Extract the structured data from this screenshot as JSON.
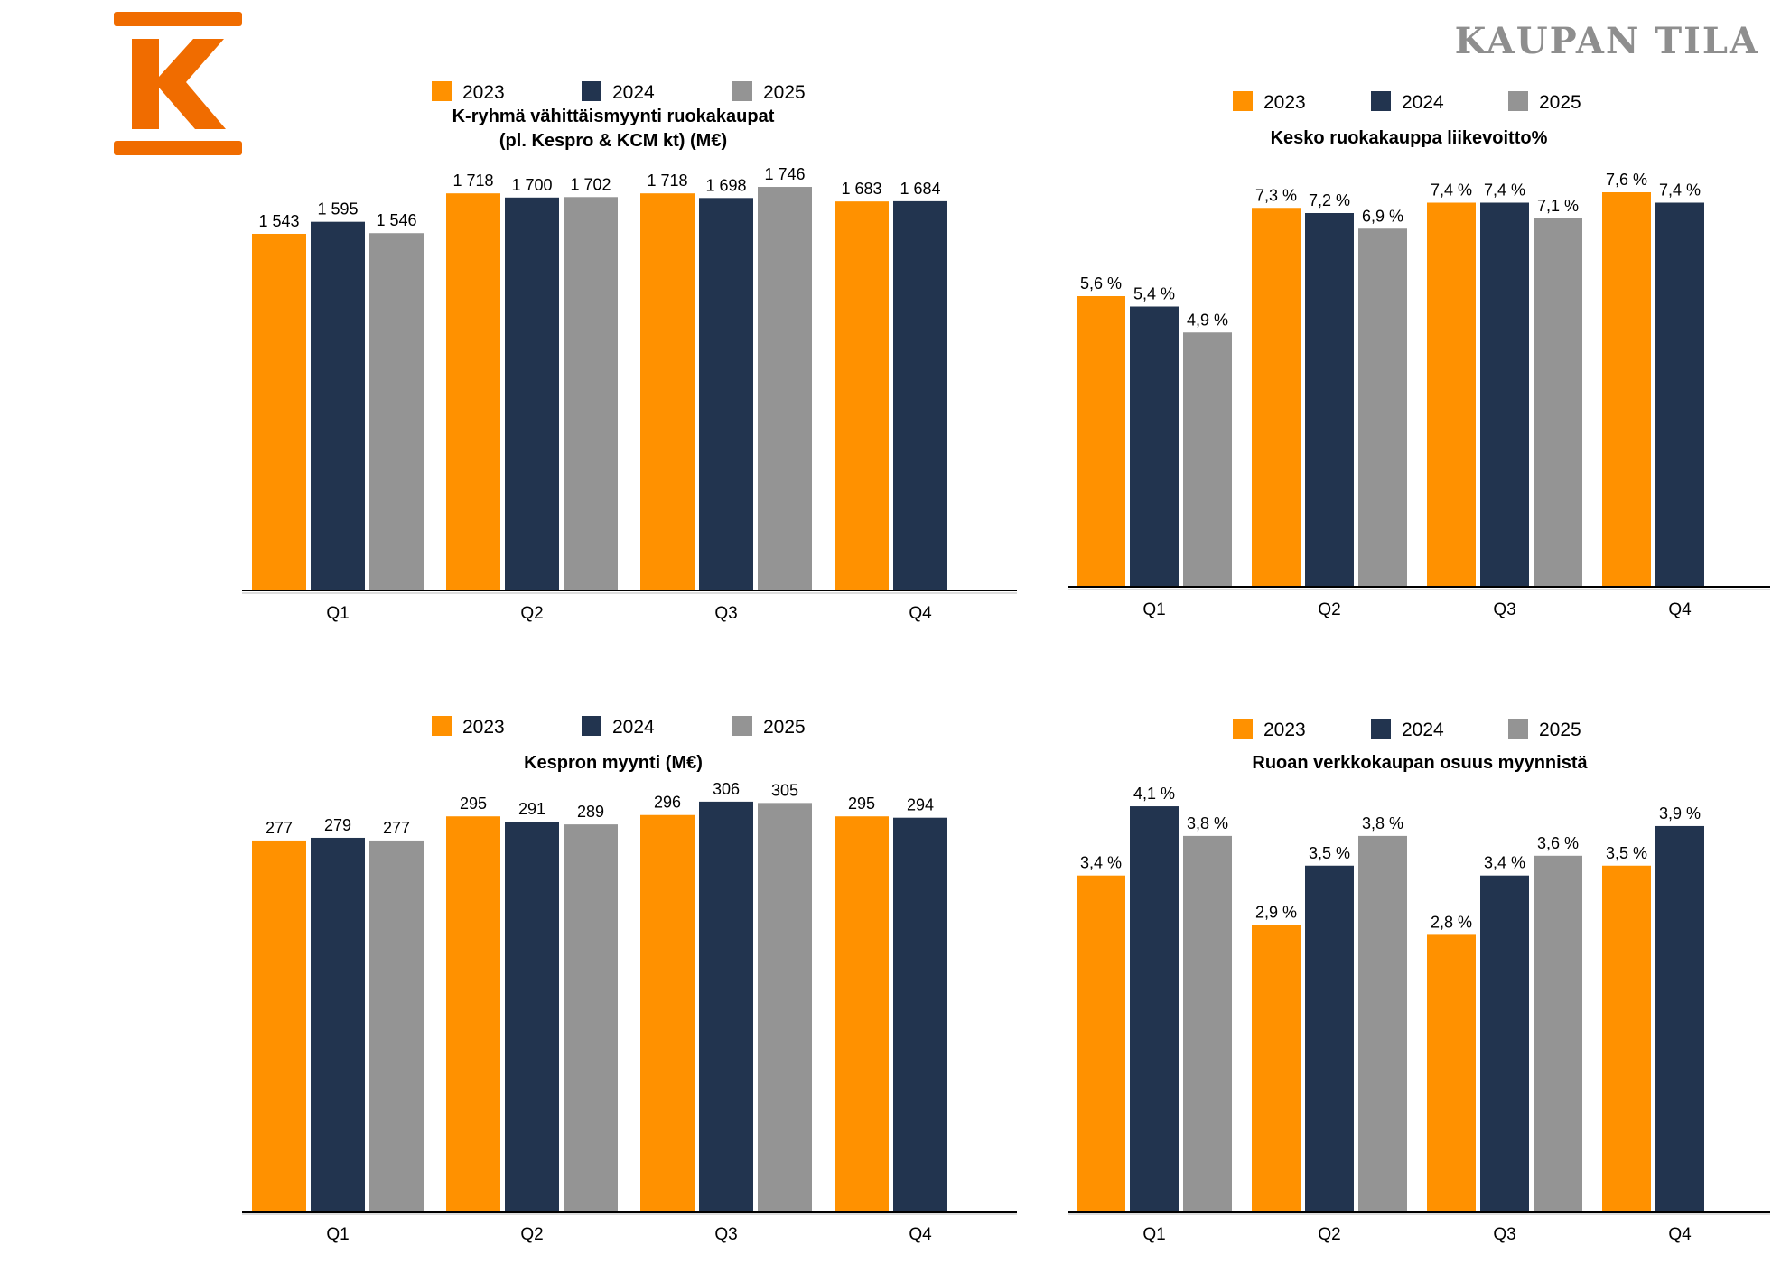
{
  "header": {
    "title": "KAUPAN TILA",
    "logo_letter": "K"
  },
  "colors": {
    "2023": "#FF9100",
    "2024": "#22344F",
    "2025": "#949494"
  },
  "chart_data": [
    {
      "type": "bar",
      "title": [
        "K-ryhmä vähittäismyynti ruokakaupat",
        "(pl. Kespro & KCM kt) (M€)"
      ],
      "categories": [
        "Q1",
        "Q2",
        "Q3",
        "Q4"
      ],
      "series": [
        {
          "name": "2023",
          "values": [
            1543,
            1718,
            1718,
            1683
          ],
          "labels": [
            "1 543",
            "1 718",
            "1 718",
            "1 683"
          ]
        },
        {
          "name": "2024",
          "values": [
            1595,
            1700,
            1698,
            1684
          ],
          "labels": [
            "1 595",
            "1 700",
            "1 698",
            "1 684"
          ]
        },
        {
          "name": "2025",
          "values": [
            1546,
            1702,
            1746,
            null
          ],
          "labels": [
            "1 546",
            "1 702",
            "1 746",
            ""
          ]
        }
      ],
      "ylim": [
        0,
        1800
      ],
      "legend": "top"
    },
    {
      "type": "bar",
      "title": [
        "Kesko ruokakauppa liikevoitto%"
      ],
      "categories": [
        "Q1",
        "Q2",
        "Q3",
        "Q4"
      ],
      "series": [
        {
          "name": "2023",
          "values": [
            5.6,
            7.3,
            7.4,
            7.6
          ],
          "labels": [
            "5,6 %",
            "7,3 %",
            "7,4 %",
            "7,6 %"
          ]
        },
        {
          "name": "2024",
          "values": [
            5.4,
            7.2,
            7.4,
            7.4
          ],
          "labels": [
            "5,4 %",
            "7,2 %",
            "7,4 %",
            "7,4 %"
          ]
        },
        {
          "name": "2025",
          "values": [
            4.9,
            6.9,
            7.1,
            null
          ],
          "labels": [
            "4,9 %",
            "6,9 %",
            "7,1 %",
            ""
          ]
        }
      ],
      "ylim": [
        0,
        8
      ],
      "legend": "top"
    },
    {
      "type": "bar",
      "title": [
        "Kespron myynti (M€)"
      ],
      "categories": [
        "Q1",
        "Q2",
        "Q3",
        "Q4"
      ],
      "series": [
        {
          "name": "2023",
          "values": [
            277,
            295,
            296,
            295
          ],
          "labels": [
            "277",
            "295",
            "296",
            "295"
          ]
        },
        {
          "name": "2024",
          "values": [
            279,
            291,
            306,
            294
          ],
          "labels": [
            "279",
            "291",
            "306",
            "294"
          ]
        },
        {
          "name": "2025",
          "values": [
            277,
            289,
            305,
            null
          ],
          "labels": [
            "277",
            "289",
            "305",
            ""
          ]
        }
      ],
      "ylim": [
        0,
        320
      ],
      "legend": "top"
    },
    {
      "type": "bar",
      "title": [
        "Ruoan verkkokaupan osuus myynnistä"
      ],
      "categories": [
        "Q1",
        "Q2",
        "Q3",
        "Q4"
      ],
      "series": [
        {
          "name": "2023",
          "values": [
            3.4,
            2.9,
            2.8,
            3.5
          ],
          "labels": [
            "3,4 %",
            "2,9 %",
            "2,8 %",
            "3,5 %"
          ]
        },
        {
          "name": "2024",
          "values": [
            4.1,
            3.5,
            3.4,
            3.9
          ],
          "labels": [
            "4,1 %",
            "3,5 %",
            "3,4 %",
            "3,9 %"
          ]
        },
        {
          "name": "2025",
          "values": [
            3.8,
            3.8,
            3.6,
            null
          ],
          "labels": [
            "3,8 %",
            "3,8 %",
            "3,6 %",
            ""
          ]
        }
      ],
      "ylim": [
        0,
        4.5
      ],
      "legend": "top"
    }
  ]
}
